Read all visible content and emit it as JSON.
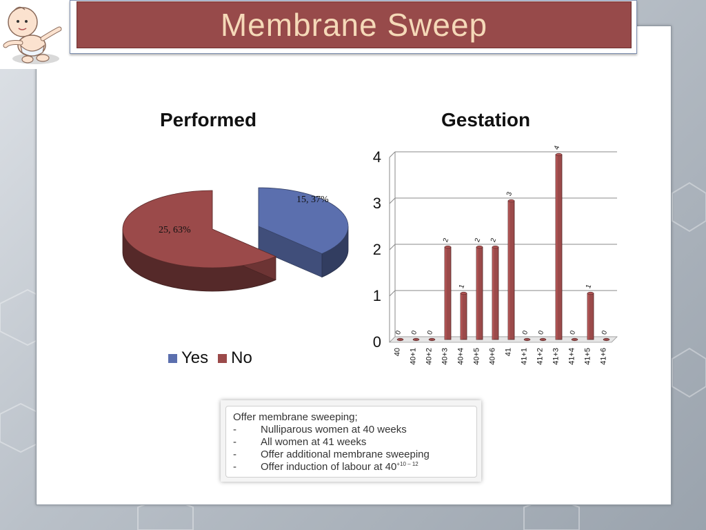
{
  "slide": {
    "title": "Membrane Sweep"
  },
  "colors": {
    "accent": "#974a4a",
    "title_text": "#f5d9b8",
    "yes": "#5b6fae",
    "no": "#9b4a4a"
  },
  "logo": {
    "icon": "baby-icon"
  },
  "chart_data": [
    {
      "type": "pie",
      "title": "Performed",
      "slices": [
        {
          "name": "Yes",
          "value": 15,
          "percent": 37,
          "label": "15, 37%"
        },
        {
          "name": "No",
          "value": 25,
          "percent": 63,
          "label": "25, 63%"
        }
      ],
      "legend": {
        "position": "bottom",
        "entries": [
          "Yes",
          "No"
        ]
      },
      "style": "3d-exploded"
    },
    {
      "type": "bar",
      "title": "Gestation",
      "categories": [
        "40",
        "40+1",
        "40+2",
        "40+3",
        "40+4",
        "40+5",
        "40+6",
        "41",
        "41+1",
        "41+2",
        "41+3",
        "41+4",
        "41+5",
        "41+6"
      ],
      "values": [
        0,
        0,
        0,
        2,
        1,
        2,
        2,
        3,
        0,
        0,
        4,
        0,
        1,
        0
      ],
      "data_labels": [
        "0",
        "0",
        "0",
        "2",
        "1",
        "2",
        "2",
        "3",
        "0",
        "0",
        "4",
        "0",
        "1",
        "0"
      ],
      "ylim": [
        0,
        4
      ],
      "yticks": [
        "0",
        "1",
        "2",
        "3",
        "4"
      ],
      "grid": true,
      "style": "3d-cylinder"
    }
  ],
  "guideline": {
    "heading": "Offer membrane sweeping;",
    "items": [
      {
        "bullet": "-",
        "text": "Nulliparous women at 40 weeks"
      },
      {
        "bullet": "-",
        "text": "All women at 41 weeks"
      },
      {
        "bullet": "-",
        "text": "Offer additional membrane sweeping"
      },
      {
        "bullet": "-",
        "text": "Offer induction of labour at 40",
        "ref": "+10 – 12"
      }
    ]
  }
}
